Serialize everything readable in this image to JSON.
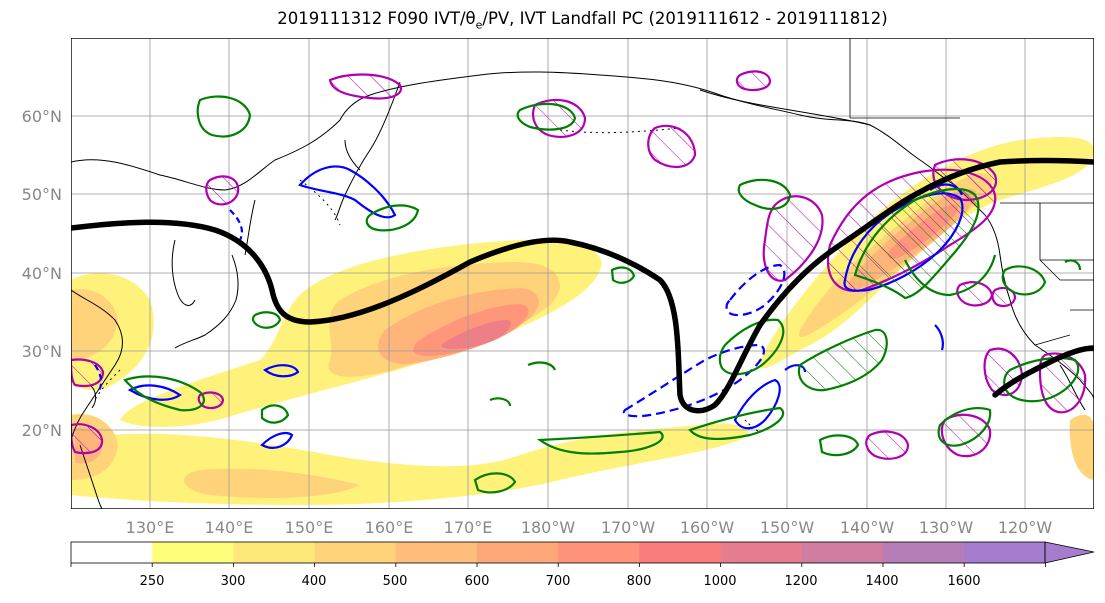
{
  "title": {
    "prefix": "2019111312 F090 IVT/θ",
    "sub": "e",
    "suffix": "/PV, IVT Landfall PC (2019111612 - 2019111812)"
  },
  "axes": {
    "lat_labels": [
      "60°N",
      "50°N",
      "40°N",
      "30°N",
      "20°N"
    ],
    "lon_labels": [
      "130°E",
      "140°E",
      "150°E",
      "160°E",
      "170°E",
      "180°W",
      "170°W",
      "160°W",
      "150°W",
      "140°W",
      "130°W",
      "120°W"
    ]
  },
  "colorbar": {
    "labels": [
      "250",
      "300",
      "400",
      "500",
      "600",
      "700",
      "800",
      "1000",
      "1200",
      "1400",
      "1600"
    ],
    "colors": [
      "#ffffff",
      "#fefe7a",
      "#fee87a",
      "#fed37a",
      "#febd7a",
      "#fea87a",
      "#fe927a",
      "#f97d7d",
      "#e57d8f",
      "#d07da1",
      "#b77db9",
      "#a67ccf"
    ]
  },
  "contour_colors": {
    "ivt": [
      "#fff27a",
      "#ffd37a",
      "#ffb47a",
      "#ff967a",
      "#ef7f86",
      "#d67f9c"
    ],
    "theta_e": "#000000",
    "landfall_pc": "#b000b0",
    "pv_positive": "#008000",
    "pv_negative": "#0000ff"
  }
}
